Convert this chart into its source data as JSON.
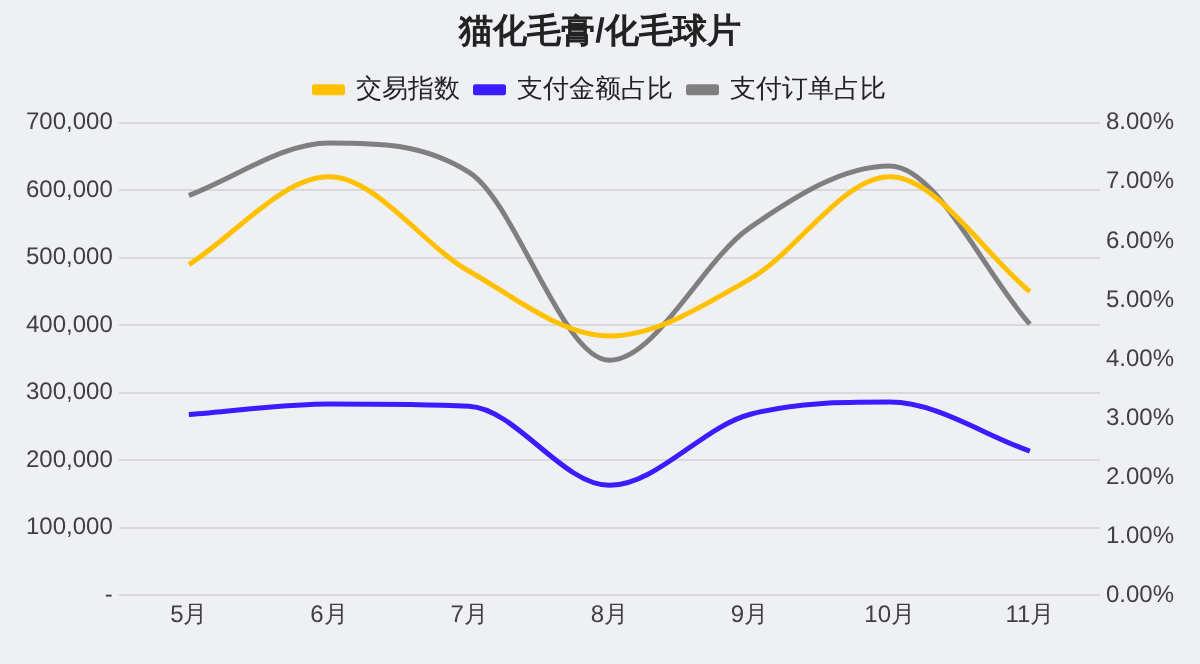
{
  "chart_data": {
    "type": "line",
    "title": "猫化毛膏/化毛球片",
    "categories": [
      "5月",
      "6月",
      "7月",
      "8月",
      "9月",
      "10月",
      "11月"
    ],
    "series": [
      {
        "name": "交易指数",
        "color": "#ffc000",
        "values": [
          490000,
          620000,
          480000,
          384000,
          468000,
          620000,
          450000
        ]
      },
      {
        "name": "支付金额占比",
        "color": "#3a1cff",
        "axis": "y2",
        "values": [
          3.06,
          3.24,
          3.2,
          1.86,
          3.06,
          3.27,
          2.44
        ]
      },
      {
        "name": "支付订单占比",
        "color": "#7f7f7f",
        "axis": "y2",
        "values": [
          6.77,
          7.66,
          7.16,
          3.98,
          6.22,
          7.27,
          4.59
        ]
      }
    ],
    "ylim": [
      0,
      700000
    ],
    "yticks": [
      {
        "value": 0,
        "label": "-"
      },
      {
        "value": 100000,
        "label": "100,000"
      },
      {
        "value": 200000,
        "label": "200,000"
      },
      {
        "value": 300000,
        "label": "300,000"
      },
      {
        "value": 400000,
        "label": "400,000"
      },
      {
        "value": 500000,
        "label": "500,000"
      },
      {
        "value": 600000,
        "label": "600,000"
      },
      {
        "value": 700000,
        "label": "700,000"
      }
    ],
    "y2lim": [
      0,
      8
    ],
    "y2ticks": [
      {
        "value": 0,
        "label": "0.00%"
      },
      {
        "value": 1,
        "label": "1.00%"
      },
      {
        "value": 2,
        "label": "2.00%"
      },
      {
        "value": 3,
        "label": "3.00%"
      },
      {
        "value": 4,
        "label": "4.00%"
      },
      {
        "value": 5,
        "label": "5.00%"
      },
      {
        "value": 6,
        "label": "6.00%"
      },
      {
        "value": 7,
        "label": "7.00%"
      },
      {
        "value": 8,
        "label": "8.00%"
      }
    ],
    "grid": "y",
    "legend": "top",
    "marker": "none",
    "line_style": "solid"
  }
}
